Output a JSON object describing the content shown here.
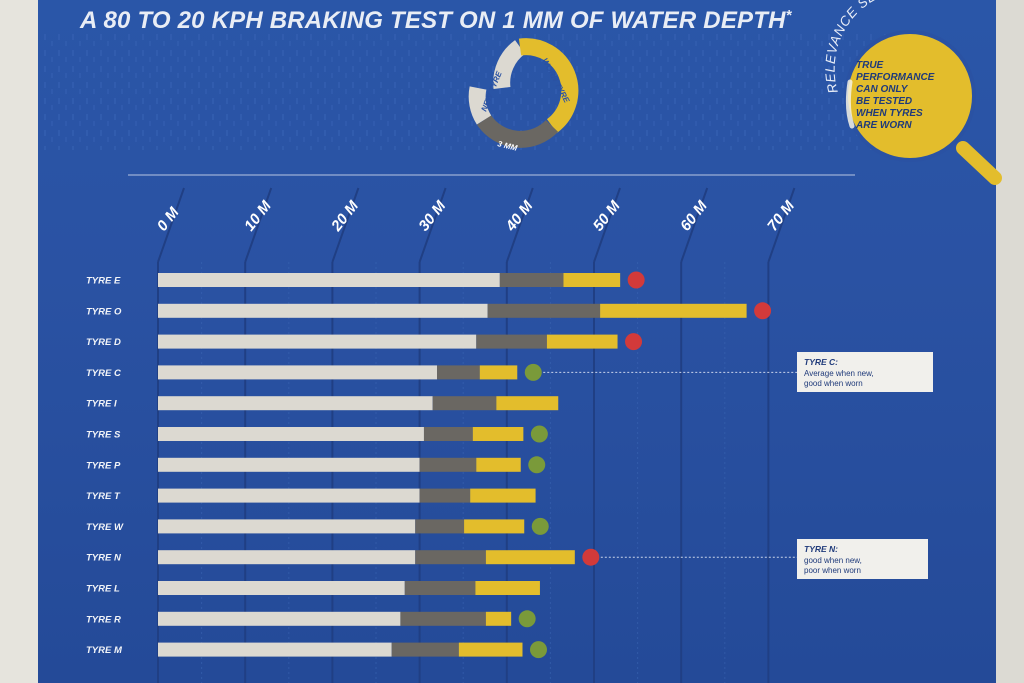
{
  "colors": {
    "background": "#2a52a3",
    "new_segment": "#dcd9d1",
    "mid_segment": "#6a6762",
    "worn_segment": "#e3bd2c",
    "pass_dot": "#7a9a3a",
    "fail_dot": "#d23a3a",
    "magnifier": "#e3bd2c",
    "note_box": "#f1f0ec"
  },
  "chart_data": {
    "type": "bar",
    "stacked": true,
    "orientation": "horizontal",
    "title": "A 80 TO 20 KPH BRAKING TEST ON 1 MM OF WATER DEPTH",
    "title_mark": "*",
    "xlabel": "",
    "ylabel": "",
    "xlim": [
      0,
      70
    ],
    "x_ticks": [
      {
        "value": 0,
        "label": "0 M"
      },
      {
        "value": 10,
        "label": "10 M"
      },
      {
        "value": 20,
        "label": "20 M"
      },
      {
        "value": 30,
        "label": "30 M"
      },
      {
        "value": 40,
        "label": "40 M"
      },
      {
        "value": 50,
        "label": "50 M"
      },
      {
        "value": 60,
        "label": "60 M"
      },
      {
        "value": 70,
        "label": "70 M"
      }
    ],
    "legend": {
      "new": "NEW TYRE",
      "worn": "WORN TYRE",
      "mid": "3 MM"
    },
    "series_names": [
      "New tyre",
      "3 mm",
      "Worn tyre"
    ],
    "categories": [
      "TYRE E",
      "TYRE O",
      "TYRE D",
      "TYRE C",
      "TYRE I",
      "TYRE S",
      "TYRE P",
      "TYRE T",
      "TYRE W",
      "TYRE N",
      "TYRE L",
      "TYRE R",
      "TYRE M"
    ],
    "bars": [
      {
        "new": 39.2,
        "mid": 46.5,
        "worn": 53.0,
        "marker": "red"
      },
      {
        "new": 37.8,
        "mid": 50.7,
        "worn": 67.5,
        "marker": "red"
      },
      {
        "new": 36.5,
        "mid": 44.6,
        "worn": 52.7,
        "marker": "red"
      },
      {
        "new": 32.0,
        "mid": 36.9,
        "worn": 41.2,
        "marker": "green"
      },
      {
        "new": 31.5,
        "mid": 38.8,
        "worn": 45.9,
        "marker": "none"
      },
      {
        "new": 30.5,
        "mid": 36.1,
        "worn": 41.9,
        "marker": "green"
      },
      {
        "new": 30.0,
        "mid": 36.5,
        "worn": 41.6,
        "marker": "green"
      },
      {
        "new": 30.0,
        "mid": 35.8,
        "worn": 43.3,
        "marker": "none"
      },
      {
        "new": 29.5,
        "mid": 35.1,
        "worn": 42.0,
        "marker": "green"
      },
      {
        "new": 29.5,
        "mid": 37.6,
        "worn": 47.8,
        "marker": "red"
      },
      {
        "new": 28.3,
        "mid": 36.4,
        "worn": 43.8,
        "marker": "none"
      },
      {
        "new": 27.8,
        "mid": 37.6,
        "worn": 40.5,
        "marker": "green"
      },
      {
        "new": 26.8,
        "mid": 34.5,
        "worn": 41.8,
        "marker": "green"
      }
    ],
    "annotations": [
      {
        "target": "TYRE C",
        "title": "TYRE C:",
        "lines": [
          "Average when new,",
          "good when worn"
        ]
      },
      {
        "target": "TYRE N",
        "title": "TYRE N:",
        "lines": [
          "good when new,",
          "poor when worn"
        ]
      }
    ]
  },
  "relevance": {
    "arc_label": "RELEVANCE SECRET",
    "lines": [
      "TRUE",
      "PERFORMANCE",
      "CAN ONLY",
      "BE TESTED",
      "WHEN TYRES",
      "ARE WORN"
    ]
  }
}
